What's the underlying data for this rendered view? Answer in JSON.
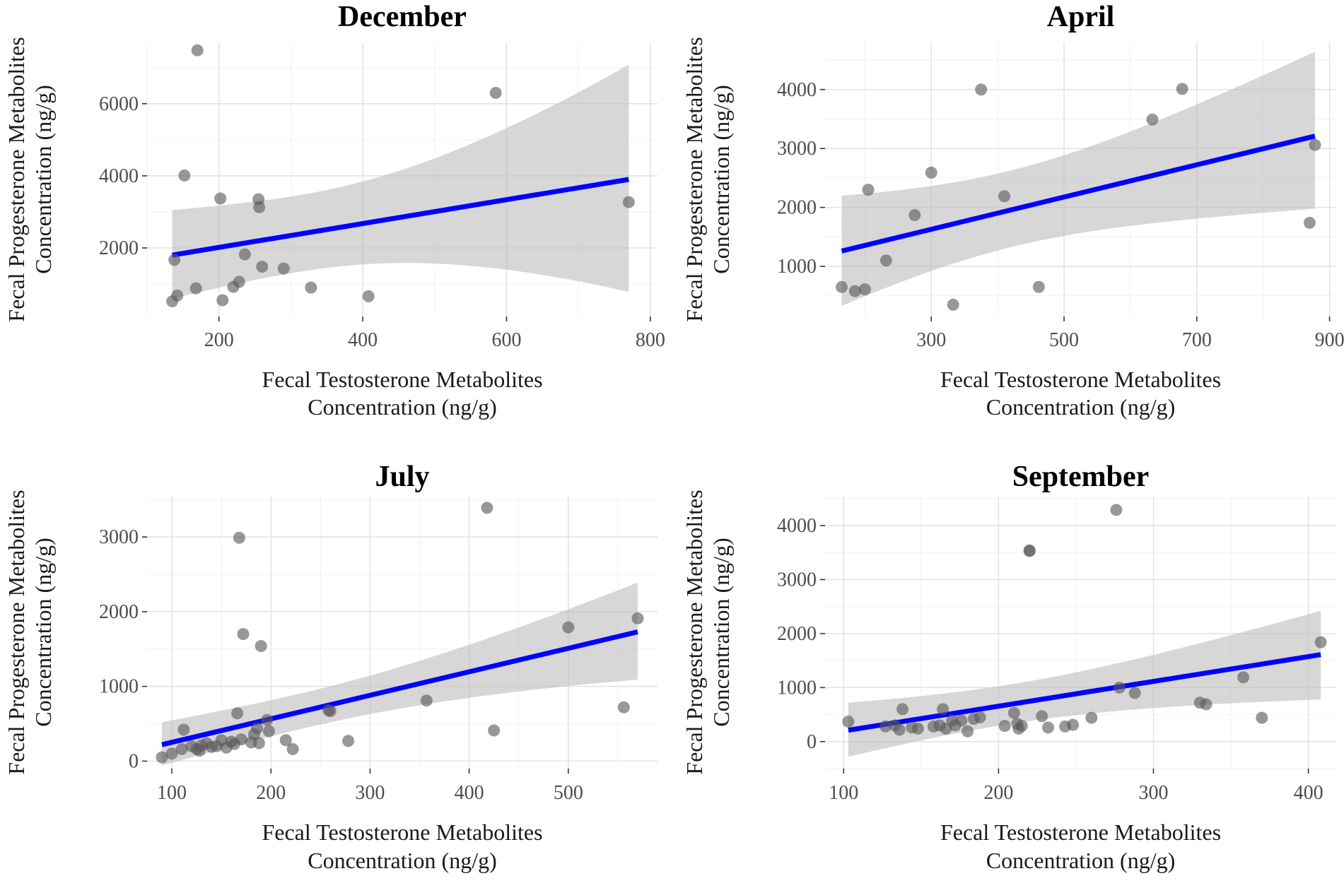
{
  "chart_data": [
    {
      "type": "scatter",
      "title": "December",
      "xlabel": [
        "Fecal Testosterone Metabolites",
        "Concentration (ng/g)"
      ],
      "ylabel": [
        "Fecal Progesterone Metabolites",
        "Concentration (ng/g)"
      ],
      "xlim": [
        100,
        810
      ],
      "ylim": [
        100,
        7700
      ],
      "xticks": [
        200,
        400,
        600,
        800
      ],
      "yticks": [
        2000,
        4000,
        6000
      ],
      "xtick_labels": [
        "200",
        "400",
        "600",
        "800"
      ],
      "ytick_labels": [
        "2000",
        "4000",
        "6000"
      ],
      "grid": true,
      "x": [
        135,
        138,
        142,
        152,
        168,
        170,
        202,
        205,
        220,
        228,
        236,
        255,
        256,
        260,
        290,
        328,
        408,
        585,
        770
      ],
      "y": [
        520,
        1670,
        680,
        4010,
        880,
        7480,
        3370,
        550,
        920,
        1060,
        1820,
        3350,
        3130,
        1480,
        1430,
        900,
        660,
        6300,
        3270
      ],
      "fit": {
        "x": [
          135,
          770
        ],
        "y": [
          1800,
          3900
        ],
        "ci_lower": [
          600,
          780
        ],
        "ci_upper": [
          3050,
          7080
        ]
      }
    },
    {
      "type": "scatter",
      "title": "April",
      "xlabel": [
        "Fecal Testosterone Metabolites",
        "Concentration (ng/g)"
      ],
      "ylabel": [
        "Fecal Progesterone Metabolites",
        "Concentration (ng/g)"
      ],
      "xlim": [
        140,
        910
      ],
      "ylim": [
        150,
        4800
      ],
      "xticks": [
        300,
        500,
        700,
        900
      ],
      "yticks": [
        1000,
        2000,
        3000,
        4000
      ],
      "xtick_labels": [
        "300",
        "500",
        "700",
        "900"
      ],
      "ytick_labels": [
        "1000",
        "2000",
        "3000",
        "4000"
      ],
      "grid": true,
      "x": [
        165,
        185,
        200,
        205,
        232,
        275,
        300,
        333,
        375,
        410,
        462,
        633,
        678,
        870,
        878
      ],
      "y": [
        650,
        580,
        610,
        2300,
        1100,
        1870,
        2590,
        350,
        4000,
        2190,
        650,
        3490,
        4010,
        1740,
        3060
      ],
      "fit": {
        "x": [
          165,
          878
        ],
        "y": [
          1260,
          3210
        ],
        "ci_lower": [
          330,
          1980
        ],
        "ci_upper": [
          2200,
          4640
        ]
      }
    },
    {
      "type": "scatter",
      "title": "July",
      "xlabel": [
        "Fecal Testosterone Metabolites",
        "Concentration (ng/g)"
      ],
      "ylabel": [
        "Fecal Progesterone Metabolites",
        "Concentration (ng/g)"
      ],
      "xlim": [
        75,
        590
      ],
      "ylim": [
        -100,
        3550
      ],
      "xticks": [
        100,
        200,
        300,
        400,
        500
      ],
      "yticks": [
        0,
        1000,
        2000,
        3000
      ],
      "xtick_labels": [
        "100",
        "200",
        "300",
        "400",
        "500"
      ],
      "ytick_labels": [
        "0",
        "1000",
        "2000",
        "3000"
      ],
      "grid": true,
      "x": [
        90,
        100,
        110,
        112,
        120,
        125,
        128,
        130,
        135,
        140,
        145,
        150,
        155,
        160,
        163,
        166,
        168,
        170,
        172,
        180,
        183,
        186,
        188,
        190,
        196,
        198,
        215,
        222,
        258,
        260,
        278,
        357,
        418,
        425,
        500,
        556,
        570
      ],
      "y": [
        50,
        100,
        160,
        420,
        200,
        160,
        140,
        210,
        240,
        190,
        200,
        280,
        180,
        260,
        230,
        640,
        2990,
        290,
        1700,
        250,
        360,
        440,
        240,
        1540,
        550,
        400,
        280,
        160,
        680,
        670,
        270,
        810,
        3390,
        410,
        1790,
        720,
        1910
      ],
      "fit": {
        "x": [
          90,
          570
        ],
        "y": [
          220,
          1730
        ],
        "ci_lower": [
          -60,
          1090
        ],
        "ci_upper": [
          520,
          2390
        ]
      }
    },
    {
      "type": "scatter",
      "title": "September",
      "xlabel": [
        "Fecal Testosterone Metabolites",
        "Concentration (ng/g)"
      ],
      "ylabel": [
        "Fecal Progesterone Metabolites",
        "Concentration (ng/g)"
      ],
      "xlim": [
        88,
        418
      ],
      "ylim": [
        -500,
        4550
      ],
      "xticks": [
        100,
        200,
        300,
        400
      ],
      "yticks": [
        0,
        1000,
        2000,
        3000,
        4000
      ],
      "xtick_labels": [
        "100",
        "200",
        "300",
        "400"
      ],
      "ytick_labels": [
        "0",
        "1000",
        "2000",
        "3000",
        "4000"
      ],
      "grid": true,
      "x": [
        103,
        127,
        133,
        136,
        138,
        144,
        148,
        158,
        162,
        164,
        166,
        170,
        172,
        176,
        180,
        184,
        188,
        204,
        210,
        212,
        213,
        215,
        220,
        220,
        228,
        232,
        243,
        248,
        260,
        276,
        278,
        288,
        330,
        334,
        358,
        370,
        408
      ],
      "y": [
        370,
        280,
        300,
        220,
        600,
        260,
        240,
        280,
        300,
        600,
        240,
        390,
        300,
        390,
        190,
        420,
        450,
        290,
        530,
        330,
        240,
        290,
        3540,
        3530,
        470,
        260,
        280,
        310,
        440,
        4290,
        1000,
        900,
        720,
        690,
        1190,
        440,
        1840
      ],
      "fit": {
        "x": [
          103,
          408
        ],
        "y": [
          210,
          1610
        ],
        "ci_lower": [
          -280,
          780
        ],
        "ci_upper": [
          720,
          2420
        ]
      }
    }
  ]
}
